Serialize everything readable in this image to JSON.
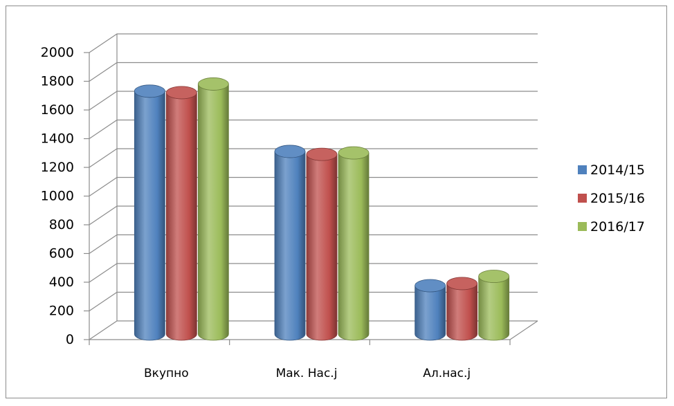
{
  "chart_data": {
    "type": "bar",
    "title": "",
    "xlabel": "",
    "ylabel": "",
    "categories": [
      "Вкупно",
      "Мак. Нас.ј",
      "Ал.нас.ј"
    ],
    "series": [
      {
        "name": "2014/15",
        "color": "#4f81bd",
        "values": [
          1760,
          1340,
          405
        ]
      },
      {
        "name": "2015/16",
        "color": "#c0504d",
        "values": [
          1750,
          1320,
          420
        ]
      },
      {
        "name": "2016/17",
        "color": "#9bbb59",
        "values": [
          1810,
          1330,
          470
        ]
      }
    ],
    "ylim": [
      0,
      2000
    ],
    "yticks": [
      0,
      200,
      400,
      600,
      800,
      1000,
      1200,
      1400,
      1600,
      1800,
      2000
    ],
    "grid": true,
    "legend": "right",
    "style": "3d-cylinder"
  }
}
